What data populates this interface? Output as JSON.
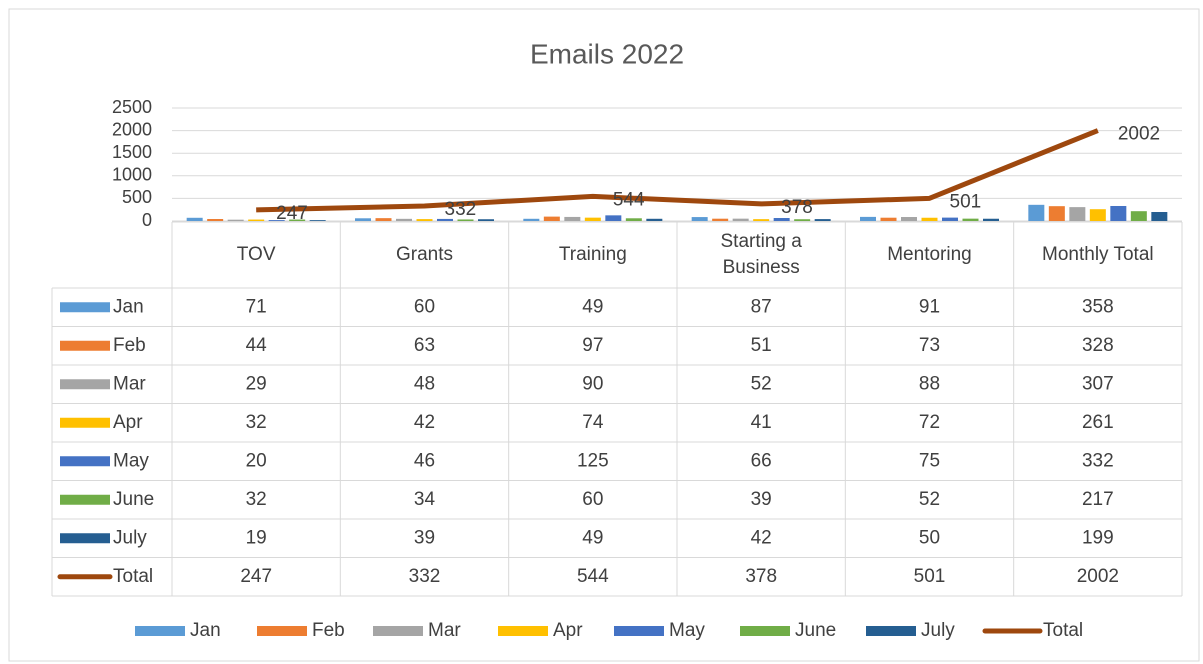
{
  "chart_data": {
    "type": "bar",
    "title": "Emails 2022",
    "categories": [
      "TOV",
      "Grants",
      "Training",
      "Starting a Business",
      "Mentoring",
      "Monthly Total"
    ],
    "series": [
      {
        "name": "Jan",
        "color": "#5b9bd5",
        "values": [
          71,
          60,
          49,
          87,
          91,
          358
        ]
      },
      {
        "name": "Feb",
        "color": "#ed7d31",
        "values": [
          44,
          63,
          97,
          51,
          73,
          328
        ]
      },
      {
        "name": "Mar",
        "color": "#a5a5a5",
        "values": [
          29,
          48,
          90,
          52,
          88,
          307
        ]
      },
      {
        "name": "Apr",
        "color": "#ffc000",
        "values": [
          32,
          42,
          74,
          41,
          72,
          261
        ]
      },
      {
        "name": "May",
        "color": "#4472c4",
        "values": [
          20,
          46,
          125,
          66,
          75,
          332
        ]
      },
      {
        "name": "June",
        "color": "#70ad47",
        "values": [
          32,
          34,
          60,
          39,
          52,
          217
        ]
      },
      {
        "name": "July",
        "color": "#255e91",
        "values": [
          19,
          39,
          49,
          42,
          50,
          199
        ]
      },
      {
        "name": "Total",
        "color": "#9e480e",
        "type": "line",
        "values": [
          247,
          332,
          544,
          378,
          501,
          2002
        ]
      }
    ],
    "ylim": [
      0,
      2500
    ],
    "yticks": [
      0,
      500,
      1000,
      1500,
      2000,
      2500
    ],
    "grid": true,
    "legend": "bottom"
  }
}
